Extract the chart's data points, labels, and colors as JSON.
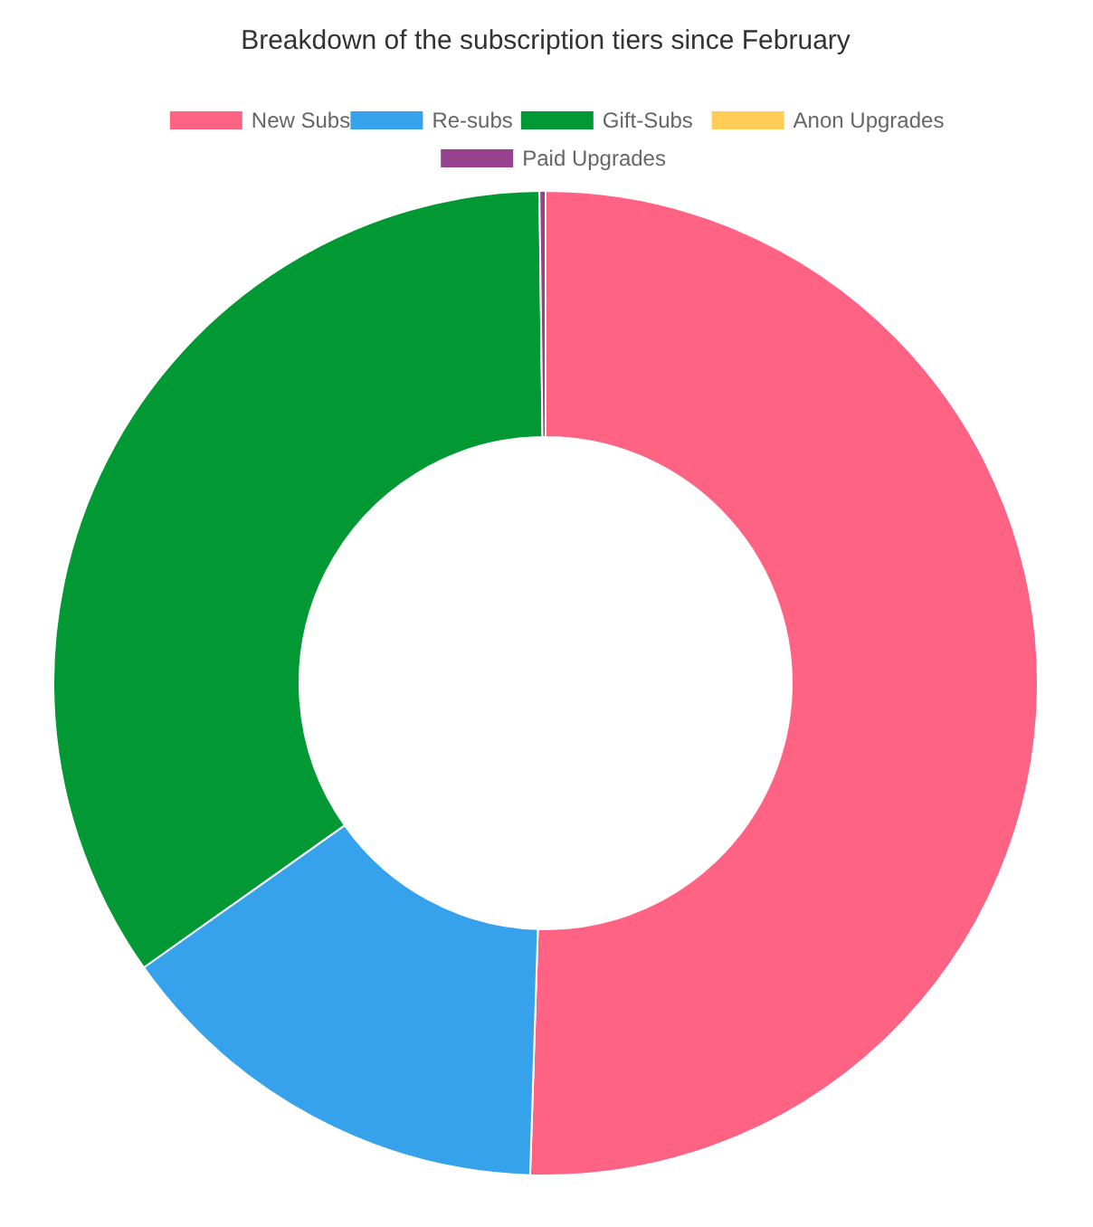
{
  "chart_data": {
    "type": "donut",
    "title": "Breakdown of the subscription tiers since February",
    "categories": [
      "New Subs",
      "Re-subs",
      "Gift-Subs",
      "Anon Upgrades",
      "Paid Upgrades"
    ],
    "values": [
      50.5,
      14.7,
      34.6,
      0,
      0.2
    ],
    "colors": [
      "#ff6384",
      "#36a2eb",
      "#029834",
      "#ffcd56",
      "#96428f"
    ],
    "legend": "top"
  }
}
